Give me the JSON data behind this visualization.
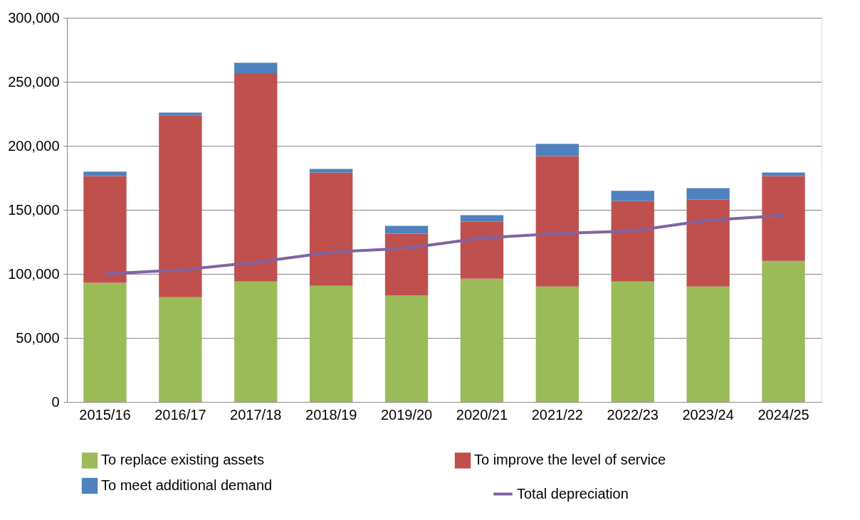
{
  "chart_data": {
    "type": "bar",
    "stacked": true,
    "categories": [
      "2015/16",
      "2016/17",
      "2017/18",
      "2018/19",
      "2019/20",
      "2020/21",
      "2021/22",
      "2022/23",
      "2023/24",
      "2024/25"
    ],
    "series": [
      {
        "name": "To replace existing assets",
        "color": "#9bbb59",
        "values": [
          93000,
          81800,
          94000,
          90700,
          83000,
          96300,
          90200,
          94000,
          90200,
          110200
        ]
      },
      {
        "name": "To improve the level of service",
        "color": "#c0504d",
        "values": [
          83400,
          142000,
          162600,
          88500,
          48400,
          44500,
          101800,
          63000,
          67900,
          66200
        ]
      },
      {
        "name": "To meet additional demand",
        "color": "#4f81bd",
        "values": [
          3400,
          2200,
          8300,
          2800,
          6100,
          5000,
          9500,
          7800,
          8900,
          2800
        ]
      },
      {
        "name": "Total depreciation",
        "type": "line",
        "color": "#8064a2",
        "values": [
          100000,
          103000,
          109000,
          117000,
          120000,
          128000,
          131500,
          133500,
          142000,
          145500
        ]
      }
    ],
    "ylim": [
      0,
      300000
    ],
    "yticks": [
      0,
      {
        "value": 50000,
        "label": "50,000"
      },
      {
        "value": 100000,
        "label": "100,000"
      },
      {
        "value": 150000,
        "label": "150,000"
      },
      {
        "value": 200000,
        "label": "200,000"
      },
      {
        "value": 250000,
        "label": "250,000"
      },
      {
        "value": 300000,
        "label": "300,000"
      }
    ],
    "grid": "y",
    "legend": "bottom",
    "marker": "none",
    "line_style": "solid"
  }
}
